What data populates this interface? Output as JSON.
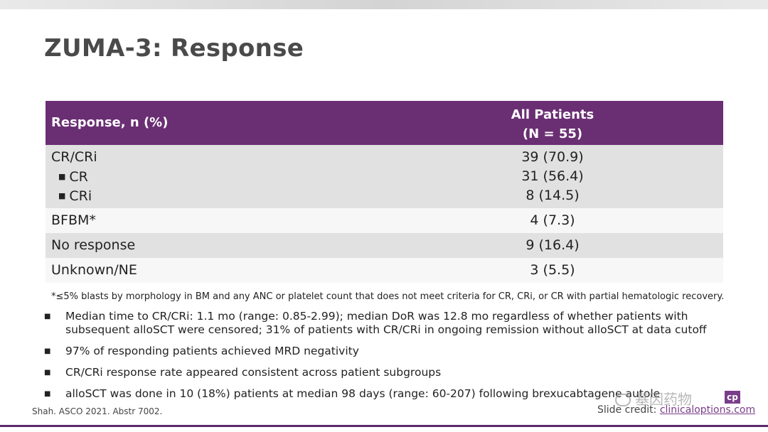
{
  "title": "ZUMA-3: Response",
  "table": {
    "header": {
      "col1": "Response, n (%)",
      "col2_line1": "All Patients",
      "col2_line2": "(N = 55)"
    },
    "rows": [
      {
        "label": "CR/CRi",
        "value": "39 (70.9)"
      },
      {
        "label": "CR",
        "value": "31 (56.4)"
      },
      {
        "label": "CRi",
        "value": "8 (14.5)"
      },
      {
        "label": "BFBM*",
        "value": "4 (7.3)"
      },
      {
        "label": "No response",
        "value": "9 (16.4)"
      },
      {
        "label": "Unknown/NE",
        "value": "3 (5.5)"
      }
    ]
  },
  "footnote": "*≤5% blasts by morphology in BM and any ANC or platelet count that does not meet criteria for CR, CRi, or CR with partial hematologic recovery.",
  "bullets": [
    "Median time to CR/CRi: 1.1 mo (range: 0.85-2.99); median DoR was 12.8 mo regardless of whether patients with subsequent alloSCT were censored; 31% of patients with CR/CRi in ongoing remission without alloSCT at data cutoff",
    "97% of responding patients achieved MRD negativity",
    "CR/CRi response rate appeared consistent across patient subgroups",
    "alloSCT was done in 10 (18%) patients at median 98 days (range: 60-207) following brexucabtagene autole"
  ],
  "citation": "Shah. ASCO 2021. Abstr 7002.",
  "credit": {
    "prefix": "Slide credit: ",
    "link": "clinicaloptions.com"
  },
  "watermark": "基因药物",
  "logo_text": "cp",
  "colors": {
    "header_bg": "#6a2e73",
    "row_gray": "#e1e1e1",
    "row_white": "#f7f7f7",
    "accent": "#7a3d8a"
  }
}
